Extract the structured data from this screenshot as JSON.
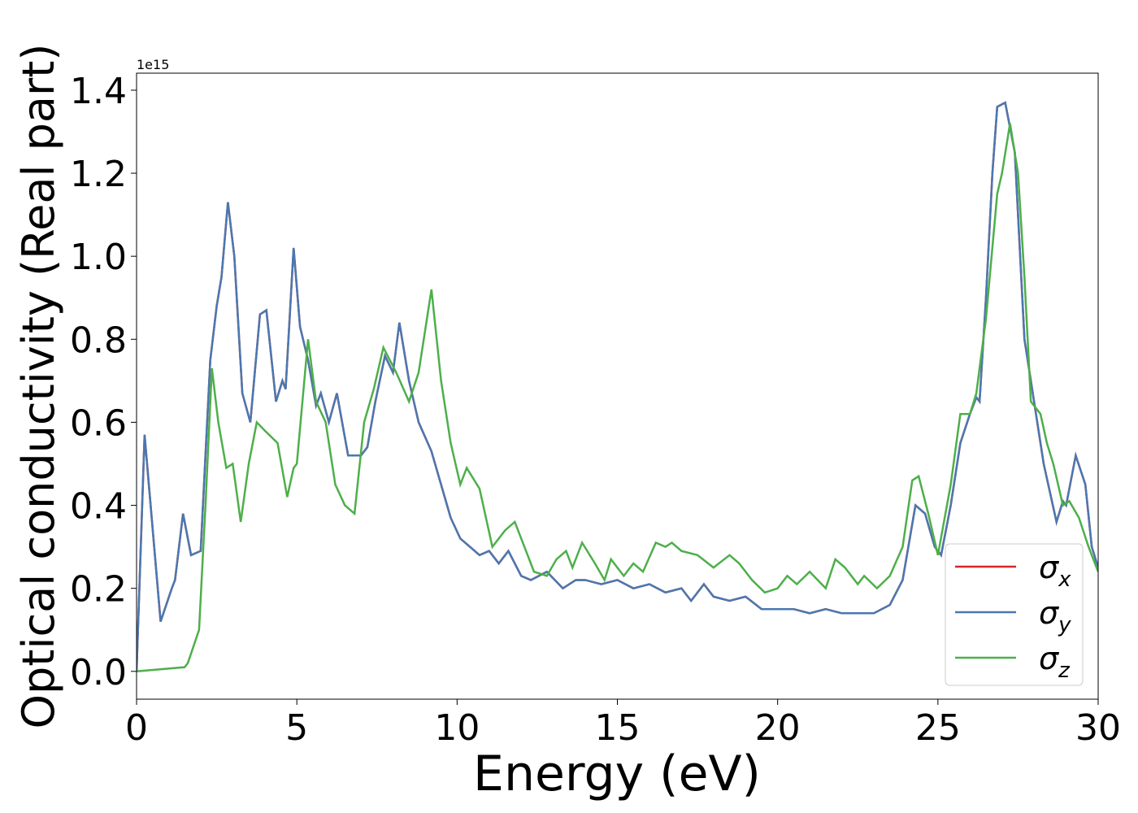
{
  "chart_data": {
    "type": "line",
    "x_label": "Energy (eV)",
    "y_label": "Optical conductivity (Real part)",
    "y_offset_label": "1e15",
    "xlim": [
      0,
      30
    ],
    "ylim": [
      -0.067,
      1.441
    ],
    "xticks": [
      0,
      5,
      10,
      15,
      20,
      25,
      30
    ],
    "yticks": [
      {
        "value": 0,
        "label": "0.0"
      },
      0.2,
      0.4,
      0.6,
      0.8,
      {
        "value": 1,
        "label": "1.0"
      },
      1.2,
      1.4
    ],
    "legend": "lower right",
    "series": [
      {
        "name": "σx",
        "color": "#d62728",
        "x": [
          0,
          0.25,
          0.75,
          1.1,
          1.2,
          1.45,
          1.7,
          2.0,
          2.3,
          2.5,
          2.65,
          2.85,
          3.05,
          3.3,
          3.55,
          3.85,
          4.05,
          4.35,
          4.55,
          4.65,
          4.9,
          5.1,
          5.35,
          5.6,
          5.75,
          6.0,
          6.25,
          6.6,
          7.0,
          7.2,
          7.45,
          7.75,
          8.0,
          8.2,
          8.5,
          8.8,
          9.2,
          9.5,
          9.8,
          10.1,
          10.4,
          10.7,
          11.0,
          11.3,
          11.6,
          12.0,
          12.3,
          12.8,
          13.3,
          13.7,
          14.0,
          14.5,
          15.0,
          15.5,
          16.0,
          16.5,
          17.0,
          17.3,
          17.7,
          18.0,
          18.5,
          19.0,
          19.5,
          20.0,
          20.5,
          21.0,
          21.5,
          22.0,
          22.5,
          23.0,
          23.5,
          23.9,
          24.3,
          24.6,
          24.9,
          25.1,
          25.4,
          25.7,
          26.0,
          26.2,
          26.3,
          26.5,
          26.7,
          26.85,
          27.1,
          27.4,
          27.7,
          28.0,
          28.3,
          28.7,
          28.9,
          29.0,
          29.3,
          29.6,
          29.8,
          30
        ],
        "values": [
          0,
          0.57,
          0.12,
          0.2,
          0.22,
          0.38,
          0.28,
          0.29,
          0.75,
          0.88,
          0.95,
          1.13,
          1.0,
          0.67,
          0.6,
          0.86,
          0.87,
          0.65,
          0.7,
          0.68,
          1.02,
          0.83,
          0.75,
          0.64,
          0.67,
          0.6,
          0.67,
          0.52,
          0.52,
          0.54,
          0.65,
          0.76,
          0.72,
          0.84,
          0.7,
          0.6,
          0.53,
          0.45,
          0.37,
          0.32,
          0.3,
          0.28,
          0.29,
          0.26,
          0.29,
          0.23,
          0.22,
          0.24,
          0.2,
          0.22,
          0.22,
          0.21,
          0.22,
          0.2,
          0.21,
          0.19,
          0.2,
          0.17,
          0.21,
          0.18,
          0.17,
          0.18,
          0.15,
          0.15,
          0.15,
          0.14,
          0.15,
          0.14,
          0.14,
          0.14,
          0.16,
          0.22,
          0.4,
          0.38,
          0.3,
          0.28,
          0.4,
          0.55,
          0.62,
          0.66,
          0.65,
          0.9,
          1.2,
          1.36,
          1.37,
          1.25,
          0.8,
          0.65,
          0.5,
          0.36,
          0.41,
          0.4,
          0.52,
          0.45,
          0.3,
          0.25
        ]
      },
      {
        "name": "σy",
        "color": "#4a78b0",
        "x": [
          0,
          0.25,
          0.75,
          1.1,
          1.2,
          1.45,
          1.7,
          2.0,
          2.3,
          2.5,
          2.65,
          2.85,
          3.05,
          3.3,
          3.55,
          3.85,
          4.05,
          4.35,
          4.55,
          4.65,
          4.9,
          5.1,
          5.35,
          5.6,
          5.75,
          6.0,
          6.25,
          6.6,
          7.0,
          7.2,
          7.45,
          7.75,
          8.0,
          8.2,
          8.5,
          8.8,
          9.2,
          9.5,
          9.8,
          10.1,
          10.4,
          10.7,
          11.0,
          11.3,
          11.6,
          12.0,
          12.3,
          12.8,
          13.3,
          13.7,
          14.0,
          14.5,
          15.0,
          15.5,
          16.0,
          16.5,
          17.0,
          17.3,
          17.7,
          18.0,
          18.5,
          19.0,
          19.5,
          20.0,
          20.5,
          21.0,
          21.5,
          22.0,
          22.5,
          23.0,
          23.5,
          23.9,
          24.3,
          24.6,
          24.9,
          25.1,
          25.4,
          25.7,
          26.0,
          26.2,
          26.3,
          26.5,
          26.7,
          26.85,
          27.1,
          27.4,
          27.7,
          28.0,
          28.3,
          28.7,
          28.9,
          29.0,
          29.3,
          29.6,
          29.8,
          30
        ],
        "values": [
          0,
          0.57,
          0.12,
          0.2,
          0.22,
          0.38,
          0.28,
          0.29,
          0.75,
          0.88,
          0.95,
          1.13,
          1.0,
          0.67,
          0.6,
          0.86,
          0.87,
          0.65,
          0.7,
          0.68,
          1.02,
          0.83,
          0.75,
          0.64,
          0.67,
          0.6,
          0.67,
          0.52,
          0.52,
          0.54,
          0.65,
          0.76,
          0.72,
          0.84,
          0.7,
          0.6,
          0.53,
          0.45,
          0.37,
          0.32,
          0.3,
          0.28,
          0.29,
          0.26,
          0.29,
          0.23,
          0.22,
          0.24,
          0.2,
          0.22,
          0.22,
          0.21,
          0.22,
          0.2,
          0.21,
          0.19,
          0.2,
          0.17,
          0.21,
          0.18,
          0.17,
          0.18,
          0.15,
          0.15,
          0.15,
          0.14,
          0.15,
          0.14,
          0.14,
          0.14,
          0.16,
          0.22,
          0.4,
          0.38,
          0.3,
          0.28,
          0.4,
          0.55,
          0.62,
          0.66,
          0.65,
          0.9,
          1.2,
          1.36,
          1.37,
          1.25,
          0.8,
          0.65,
          0.5,
          0.36,
          0.41,
          0.4,
          0.52,
          0.45,
          0.3,
          0.25
        ]
      },
      {
        "name": "σz",
        "color": "#4daf4a",
        "x": [
          0,
          1.5,
          1.6,
          1.95,
          2.15,
          2.35,
          2.55,
          2.8,
          3.0,
          3.25,
          3.5,
          3.75,
          4.0,
          4.4,
          4.7,
          4.9,
          5.0,
          5.35,
          5.6,
          5.9,
          6.2,
          6.5,
          6.8,
          7.1,
          7.4,
          7.7,
          8.1,
          8.5,
          8.8,
          9.2,
          9.5,
          9.8,
          10.1,
          10.3,
          10.7,
          11.1,
          11.5,
          11.8,
          12.1,
          12.4,
          12.8,
          13.1,
          13.4,
          13.6,
          13.9,
          14.3,
          14.6,
          14.8,
          15.2,
          15.5,
          15.8,
          16.2,
          16.5,
          16.7,
          17.0,
          17.5,
          18.0,
          18.5,
          18.8,
          19.2,
          19.6,
          20.0,
          20.3,
          20.6,
          21.0,
          21.5,
          21.8,
          22.1,
          22.5,
          22.7,
          23.1,
          23.5,
          23.9,
          24.2,
          24.4,
          24.7,
          25.0,
          25.4,
          25.7,
          26.0,
          26.2,
          26.5,
          26.85,
          27.0,
          27.25,
          27.5,
          27.7,
          27.9,
          28.2,
          28.4,
          28.6,
          28.9,
          29.1,
          29.4,
          29.7,
          30
        ],
        "values": [
          0,
          0.01,
          0.02,
          0.1,
          0.4,
          0.73,
          0.6,
          0.49,
          0.5,
          0.36,
          0.5,
          0.6,
          0.58,
          0.55,
          0.42,
          0.49,
          0.5,
          0.8,
          0.65,
          0.6,
          0.45,
          0.4,
          0.38,
          0.6,
          0.68,
          0.78,
          0.72,
          0.65,
          0.72,
          0.92,
          0.7,
          0.55,
          0.45,
          0.49,
          0.44,
          0.3,
          0.34,
          0.36,
          0.3,
          0.24,
          0.23,
          0.27,
          0.29,
          0.25,
          0.31,
          0.26,
          0.22,
          0.27,
          0.23,
          0.26,
          0.24,
          0.31,
          0.3,
          0.31,
          0.29,
          0.28,
          0.25,
          0.28,
          0.26,
          0.22,
          0.19,
          0.2,
          0.23,
          0.21,
          0.24,
          0.2,
          0.27,
          0.25,
          0.21,
          0.23,
          0.2,
          0.23,
          0.3,
          0.46,
          0.47,
          0.38,
          0.28,
          0.45,
          0.62,
          0.62,
          0.67,
          0.85,
          1.15,
          1.2,
          1.32,
          1.2,
          0.95,
          0.65,
          0.62,
          0.55,
          0.5,
          0.4,
          0.41,
          0.37,
          0.3,
          0.24
        ]
      }
    ]
  }
}
